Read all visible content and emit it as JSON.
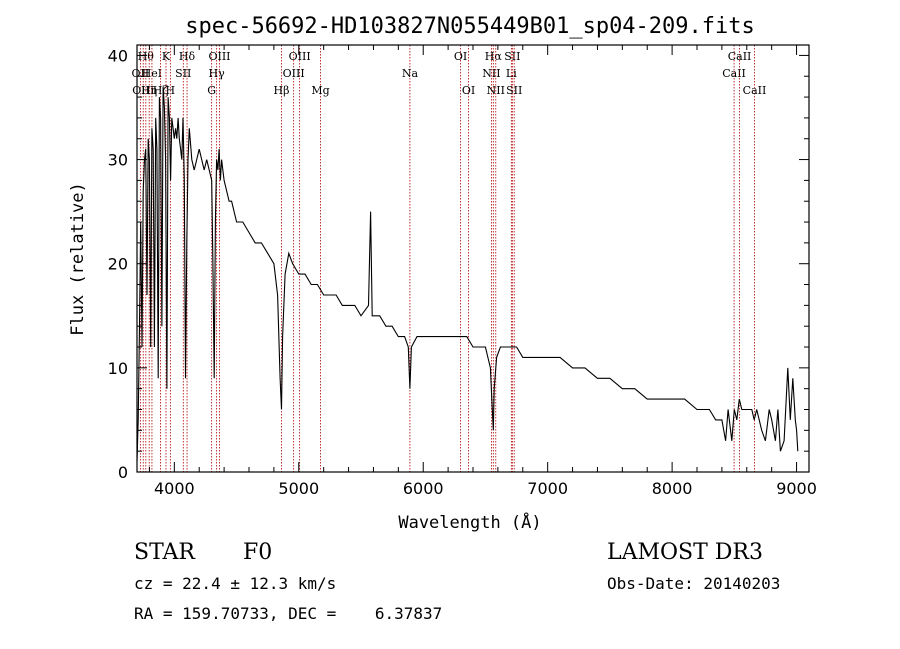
{
  "chart_data": {
    "type": "line",
    "title": "spec-56692-HD103827N055449B01_sp04-209.fits",
    "xlabel": "Wavelength (Å)",
    "ylabel": "Flux (relative)",
    "xlim": [
      3700,
      9100
    ],
    "ylim": [
      0,
      41
    ],
    "xticks": [
      4000,
      5000,
      6000,
      7000,
      8000,
      9000
    ],
    "yticks": [
      0,
      10,
      20,
      30,
      40
    ],
    "series": [
      {
        "x": [
          3700,
          3710,
          3720,
          3730,
          3740,
          3750,
          3760,
          3770,
          3780,
          3790,
          3800,
          3810,
          3820,
          3830,
          3840,
          3850,
          3860,
          3870,
          3880,
          3890,
          3900,
          3910,
          3920,
          3930,
          3940,
          3950,
          3960,
          3970,
          3980,
          3990,
          4000,
          4010,
          4020,
          4030,
          4040,
          4050,
          4060,
          4070,
          4080,
          4090,
          4100,
          4110,
          4120,
          4140,
          4160,
          4180,
          4200,
          4220,
          4240,
          4260,
          4280,
          4300,
          4310,
          4320,
          4330,
          4340,
          4350,
          4360,
          4370,
          4380,
          4400,
          4420,
          4440,
          4460,
          4480,
          4500,
          4550,
          4600,
          4650,
          4700,
          4750,
          4800,
          4830,
          4850,
          4861,
          4870,
          4890,
          4920,
          4950,
          5000,
          5050,
          5100,
          5150,
          5200,
          5250,
          5300,
          5350,
          5400,
          5450,
          5500,
          5560,
          5577,
          5590,
          5650,
          5700,
          5750,
          5800,
          5850,
          5880,
          5893,
          5905,
          5950,
          6000,
          6050,
          6100,
          6150,
          6200,
          6250,
          6300,
          6350,
          6400,
          6450,
          6500,
          6540,
          6555,
          6563,
          6570,
          6590,
          6620,
          6650,
          6700,
          6750,
          6800,
          6850,
          6900,
          6950,
          7000,
          7100,
          7200,
          7300,
          7400,
          7500,
          7600,
          7700,
          7800,
          7900,
          8000,
          8100,
          8200,
          8300,
          8350,
          8400,
          8430,
          8450,
          8480,
          8500,
          8520,
          8540,
          8560,
          8580,
          8600,
          8620,
          8640,
          8660,
          8680,
          8700,
          8720,
          8750,
          8780,
          8800,
          8830,
          8850,
          8870,
          8900,
          8930,
          8950,
          8970,
          8990,
          9000,
          9010
        ],
        "values": [
          1,
          5,
          14,
          24,
          12,
          27,
          30,
          31,
          17,
          32,
          30,
          12,
          33,
          31,
          12,
          34,
          31,
          9,
          36,
          34,
          14,
          37,
          35,
          30,
          8,
          36,
          34,
          28,
          34,
          33,
          32,
          33,
          32,
          34,
          32,
          31,
          30,
          34,
          28,
          9,
          22,
          30,
          33,
          30,
          29,
          30,
          31,
          30,
          29,
          30,
          29,
          28,
          20,
          9,
          24,
          30,
          29,
          31,
          28,
          30,
          28,
          27,
          26,
          26,
          25,
          24,
          24,
          23,
          22,
          22,
          21,
          20,
          17,
          9,
          6,
          13,
          19,
          21,
          20,
          19,
          19,
          18,
          18,
          17,
          17,
          17,
          16,
          16,
          16,
          15,
          16,
          25,
          15,
          15,
          14,
          14,
          13,
          13,
          12,
          8,
          12,
          13,
          13,
          13,
          13,
          13,
          13,
          13,
          13,
          13,
          12,
          12,
          12,
          10,
          6,
          4,
          8,
          11,
          12,
          12,
          12,
          12,
          11,
          11,
          11,
          11,
          11,
          11,
          10,
          10,
          9,
          9,
          8,
          8,
          7,
          7,
          7,
          7,
          6,
          6,
          5,
          5,
          3,
          6,
          3,
          6,
          5,
          7,
          6,
          6,
          6,
          6,
          6,
          5,
          6,
          5,
          4,
          3,
          6,
          5,
          3,
          6,
          2,
          3,
          10,
          5,
          9,
          5,
          4,
          2
        ]
      }
    ],
    "lines": [
      {
        "x": 3727,
        "labels": [
          "OII"
        ],
        "row": 1
      },
      {
        "x": 3750,
        "labels": [
          "OIII"
        ],
        "row": 2
      },
      {
        "x": 3771,
        "labels": [
          "Hθ"
        ],
        "row": 0
      },
      {
        "x": 3798,
        "labels": [
          "Hη"
        ],
        "row": 2
      },
      {
        "x": 3820,
        "labels": [
          "HeI"
        ],
        "row": 1
      },
      {
        "x": 3889,
        "labels": [
          "Hζ"
        ],
        "row": 2
      },
      {
        "x": 3933,
        "labels": [
          "K"
        ],
        "row": 0
      },
      {
        "x": 3968,
        "labels": [
          "H"
        ],
        "row": 2
      },
      {
        "x": 4072,
        "labels": [
          "SII"
        ],
        "row": 1
      },
      {
        "x": 4102,
        "labels": [
          "Hδ"
        ],
        "row": 0
      },
      {
        "x": 4300,
        "labels": [
          "G"
        ],
        "row": 2
      },
      {
        "x": 4340,
        "labels": [
          "Hγ"
        ],
        "row": 1
      },
      {
        "x": 4363,
        "labels": [
          "OIII"
        ],
        "row": 0
      },
      {
        "x": 4861,
        "labels": [
          "Hβ"
        ],
        "row": 2
      },
      {
        "x": 4959,
        "labels": [
          "OIII"
        ],
        "row": 1
      },
      {
        "x": 5007,
        "labels": [
          "OIII"
        ],
        "row": 0
      },
      {
        "x": 5175,
        "labels": [
          "Mg"
        ],
        "row": 2
      },
      {
        "x": 5893,
        "labels": [
          "Na"
        ],
        "row": 1
      },
      {
        "x": 6300,
        "labels": [
          "OI"
        ],
        "row": 0
      },
      {
        "x": 6364,
        "labels": [
          "OI"
        ],
        "row": 2
      },
      {
        "x": 6548,
        "labels": [
          "NII"
        ],
        "row": 1
      },
      {
        "x": 6563,
        "labels": [
          "Hα"
        ],
        "row": 0
      },
      {
        "x": 6583,
        "labels": [
          "NII"
        ],
        "row": 2
      },
      {
        "x": 6708,
        "labels": [
          "Li"
        ],
        "row": 1
      },
      {
        "x": 6716,
        "labels": [
          "SII"
        ],
        "row": 0
      },
      {
        "x": 6731,
        "labels": [
          "SII"
        ],
        "row": 2
      },
      {
        "x": 8498,
        "labels": [
          "CaII"
        ],
        "row": 1
      },
      {
        "x": 8542,
        "labels": [
          "CaII"
        ],
        "row": 0
      },
      {
        "x": 8662,
        "labels": [
          "CaII"
        ],
        "row": 2
      }
    ]
  },
  "info": {
    "obj_class": "STAR",
    "subclass": "F0",
    "survey": "LAMOST DR3",
    "cz": "cz = 22.4 ± 12.3 km/s",
    "obs_date": "Obs-Date: 20140203",
    "coords": "RA = 159.70733, DEC =    6.37837"
  }
}
